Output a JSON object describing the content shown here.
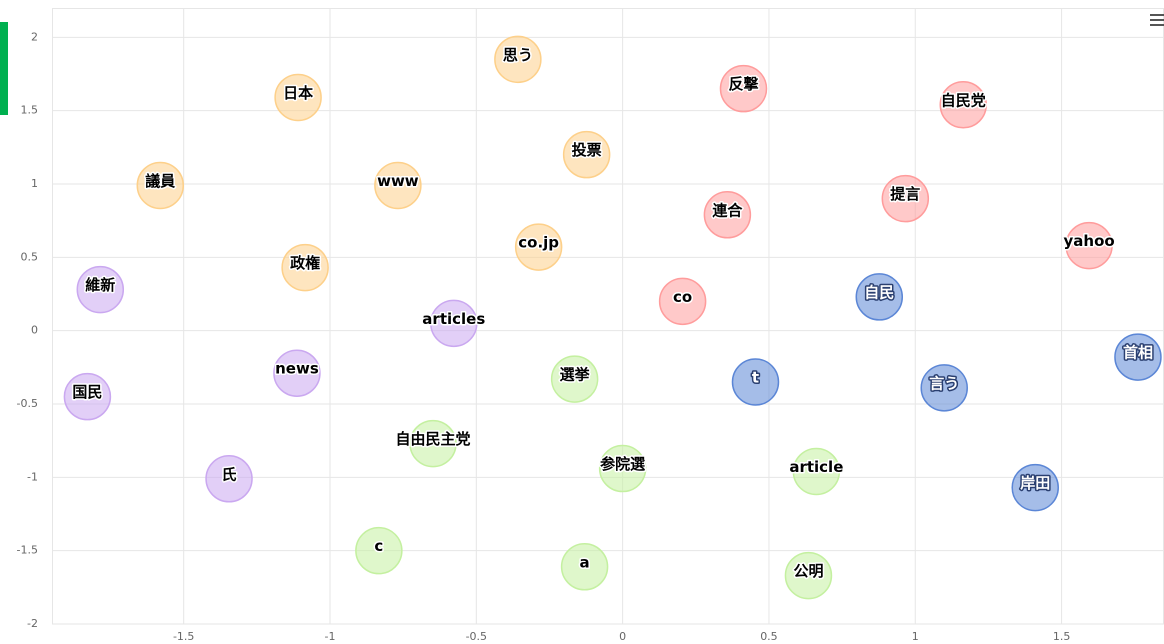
{
  "chart_data": {
    "type": "scatter",
    "xlim": [
      -1.95,
      1.85
    ],
    "ylim": [
      -2,
      2.2
    ],
    "xticks": [
      -1.5,
      -1,
      -0.5,
      0,
      0.5,
      1,
      1.5
    ],
    "yticks": [
      -2,
      -1.5,
      -1,
      -0.5,
      0,
      0.5,
      1,
      1.5,
      2
    ],
    "grid": true,
    "series": [
      {
        "color": "#fdd08a",
        "label_color": "#000000",
        "labels": [
          "思う",
          "日本",
          "投票",
          "議員",
          "www",
          "co.jp",
          "政権"
        ],
        "x": [
          -0.358,
          -1.109,
          -0.123,
          -1.58,
          -0.768,
          -0.287,
          -1.085
        ],
        "y": [
          1.85,
          1.59,
          1.2,
          0.99,
          0.99,
          0.57,
          0.43
        ]
      },
      {
        "color": "#ff9c9c",
        "label_color": "#000000",
        "labels": [
          "反撃",
          "自民党",
          "連合",
          "提言",
          "yahoo",
          "co"
        ],
        "x": [
          0.413,
          1.164,
          0.358,
          0.966,
          1.594,
          0.205
        ],
        "y": [
          1.65,
          1.54,
          0.79,
          0.9,
          0.58,
          0.2
        ]
      },
      {
        "color": "#5b86d6",
        "label_color": "#ffffff",
        "labels": [
          "自民",
          "首相",
          "t",
          "言う",
          "岸田"
        ],
        "x": [
          0.877,
          1.761,
          0.454,
          1.099,
          1.41
        ],
        "y": [
          0.23,
          -0.18,
          -0.35,
          -0.39,
          -1.07
        ]
      },
      {
        "color": "#caa8f0",
        "label_color": "#000000",
        "labels": [
          "維新",
          "articles",
          "news",
          "国民",
          "氏"
        ],
        "x": [
          -1.785,
          -0.577,
          -1.113,
          -1.829,
          -1.345
        ],
        "y": [
          0.28,
          0.05,
          -0.29,
          -0.45,
          -1.01
        ]
      },
      {
        "color": "#c4f0a0",
        "label_color": "#000000",
        "labels": [
          "選挙",
          "自由民主党",
          "参院選",
          "article",
          "c",
          "a",
          "公明"
        ],
        "x": [
          -0.164,
          -0.648,
          0.0,
          0.662,
          -0.833,
          -0.13,
          0.635
        ],
        "y": [
          -0.33,
          -0.77,
          -0.94,
          -0.96,
          -1.5,
          -1.61,
          -1.67
        ]
      }
    ]
  }
}
